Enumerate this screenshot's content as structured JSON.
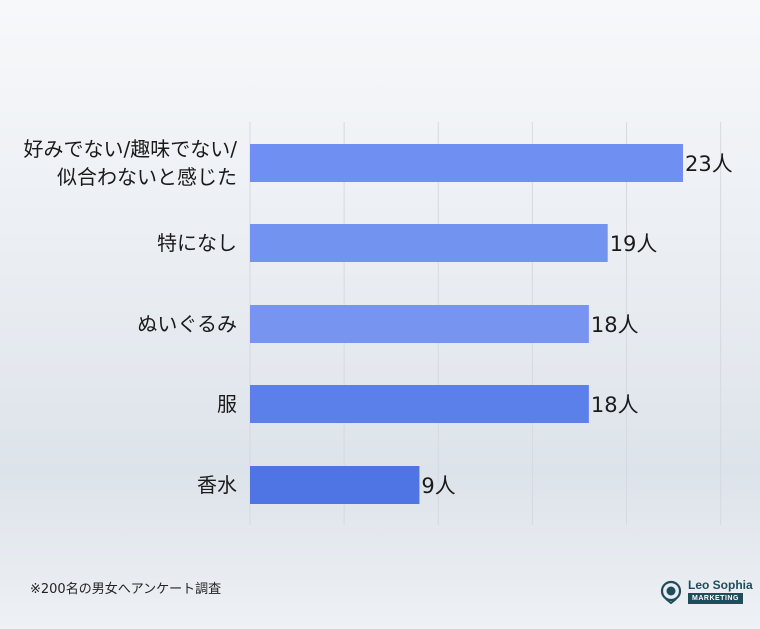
{
  "chart_data": {
    "type": "bar",
    "orientation": "horizontal",
    "categories": [
      [
        "好みでない/趣味でない/",
        "似合わないと感じた"
      ],
      [
        "特になし"
      ],
      [
        "ぬいぐるみ"
      ],
      [
        "服"
      ],
      [
        "香水"
      ]
    ],
    "values": [
      23,
      19,
      18,
      18,
      9
    ],
    "value_labels": [
      "23人",
      "19人",
      "18人",
      "18人",
      "9人"
    ],
    "xlim": [
      0,
      25
    ],
    "grid": true,
    "bar_colors": [
      "#6f90f2",
      "#7393f1",
      "#7795f0",
      "#5c80ea",
      "#4f74e4"
    ]
  },
  "footnote": "※200名の男女へアンケート調査",
  "logo": {
    "name": "Leo Sophia",
    "sub": "MARKETING",
    "color": "#1e4d5c"
  }
}
